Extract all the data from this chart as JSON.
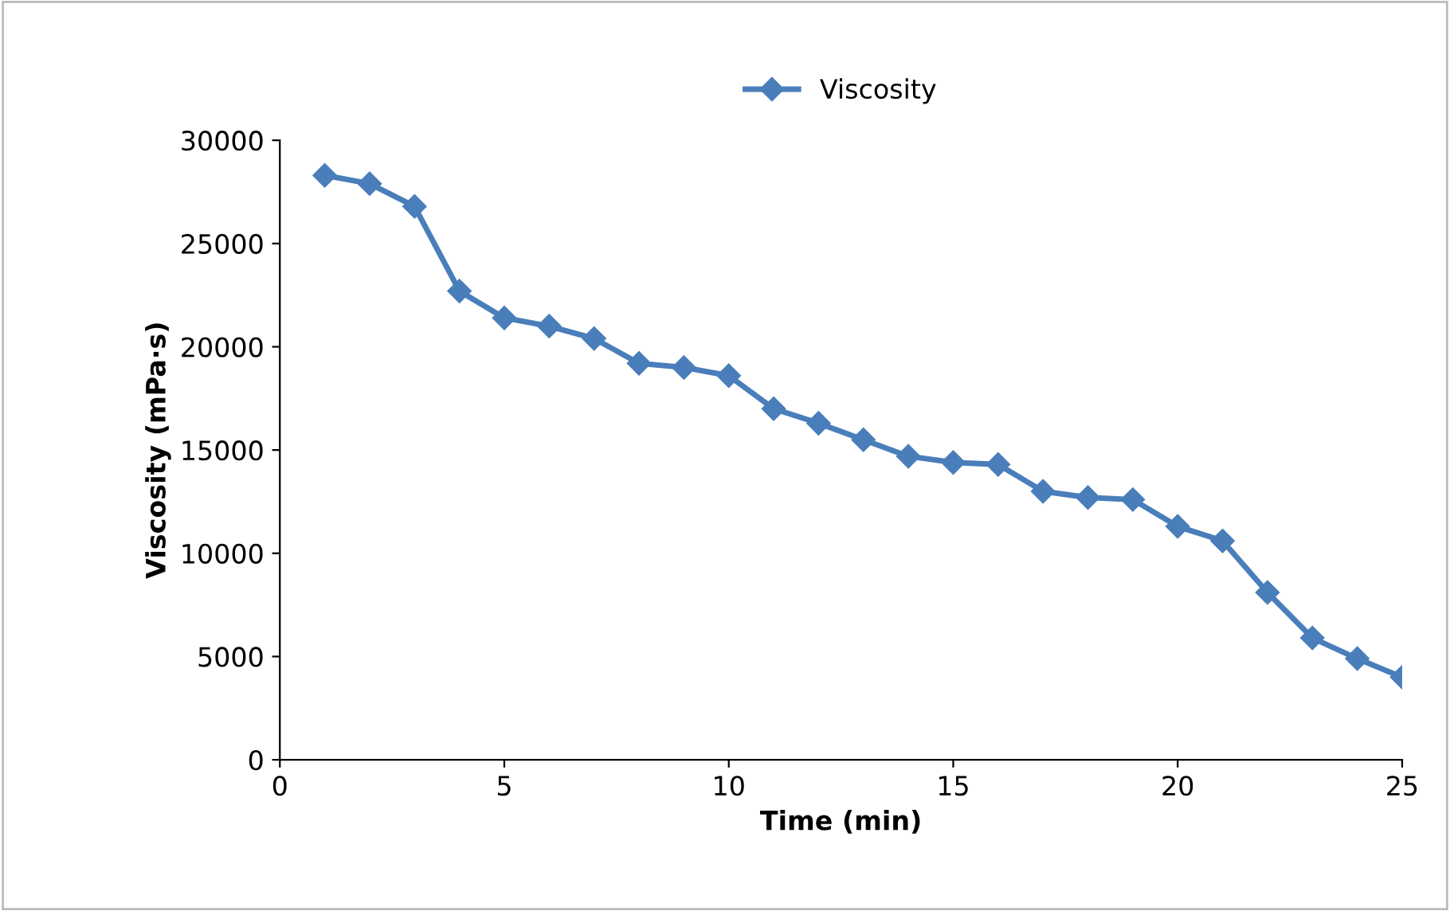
{
  "chart_data": {
    "type": "line",
    "xlabel": "Time (min)",
    "ylabel": "Viscosity (mPa·s)",
    "x": [
      1,
      2,
      3,
      4,
      5,
      6,
      7,
      8,
      9,
      10,
      11,
      12,
      13,
      14,
      15,
      16,
      17,
      18,
      19,
      20,
      21,
      22,
      23,
      24,
      25
    ],
    "series": [
      {
        "name": "Viscosity",
        "color": "#4a7ebb",
        "values": [
          28300,
          27900,
          26800,
          22700,
          21400,
          21000,
          20400,
          19200,
          19000,
          18600,
          17000,
          16300,
          15500,
          14700,
          14400,
          14300,
          13000,
          12700,
          12600,
          11300,
          10600,
          8100,
          5900,
          4900,
          4000
        ]
      }
    ],
    "xlim": [
      0,
      25
    ],
    "xticks": [
      0,
      5,
      10,
      15,
      20,
      25
    ],
    "ylim": [
      0,
      30000
    ],
    "yticks": [
      0,
      5000,
      10000,
      15000,
      20000,
      25000,
      30000
    ],
    "grid": false,
    "legend": "top",
    "marker": "diamond",
    "line_style": "solid"
  }
}
